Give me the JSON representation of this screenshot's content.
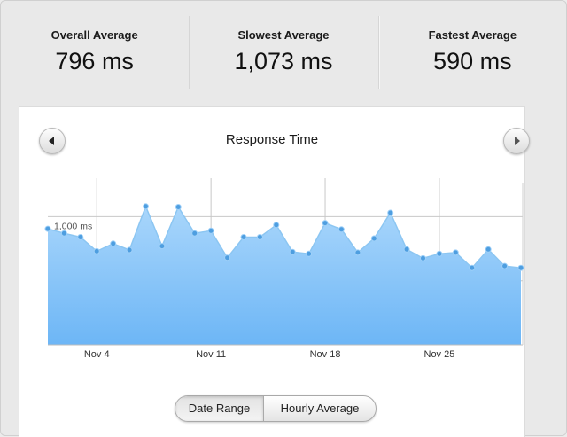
{
  "stats": [
    {
      "label": "Overall Average",
      "value": "796 ms"
    },
    {
      "label": "Slowest Average",
      "value": "1,073 ms"
    },
    {
      "label": "Fastest Average",
      "value": "590 ms"
    }
  ],
  "panel": {
    "prev_icon": "triangle-left-icon",
    "next_icon": "triangle-right-icon"
  },
  "toggle": {
    "options": [
      "Date Range",
      "Hourly Average"
    ],
    "selected": "Date Range"
  },
  "colors": {
    "area_top": "#a9d6fb",
    "area_bottom": "#6db6f6",
    "line": "#8cc6f2",
    "point": "#4e9ee0",
    "grid": "#c8c8c8"
  },
  "chart_data": {
    "type": "area",
    "title": "Response Time",
    "ylabel": "",
    "xlabel": "",
    "ylim": [
      0,
      1300
    ],
    "y_ticks": [
      1000
    ],
    "y_tick_labels": [
      "1,000 ms"
    ],
    "x_tick_labels": [
      "Nov 4",
      "Nov 11",
      "Nov 18",
      "Nov 25"
    ],
    "x_tick_days": [
      4,
      11,
      18,
      25
    ],
    "grid": true,
    "x": [
      1,
      2,
      3,
      4,
      5,
      6,
      7,
      8,
      9,
      10,
      11,
      12,
      13,
      14,
      15,
      16,
      17,
      18,
      19,
      20,
      21,
      22,
      23,
      24,
      25,
      26,
      27,
      28,
      29,
      30
    ],
    "series": [
      {
        "values": [
          905,
          870,
          840,
          730,
          790,
          740,
          1080,
          770,
          1075,
          870,
          890,
          680,
          840,
          840,
          935,
          725,
          710,
          950,
          900,
          720,
          830,
          1030,
          745,
          675,
          710,
          720,
          600,
          745,
          615,
          600
        ]
      }
    ]
  }
}
